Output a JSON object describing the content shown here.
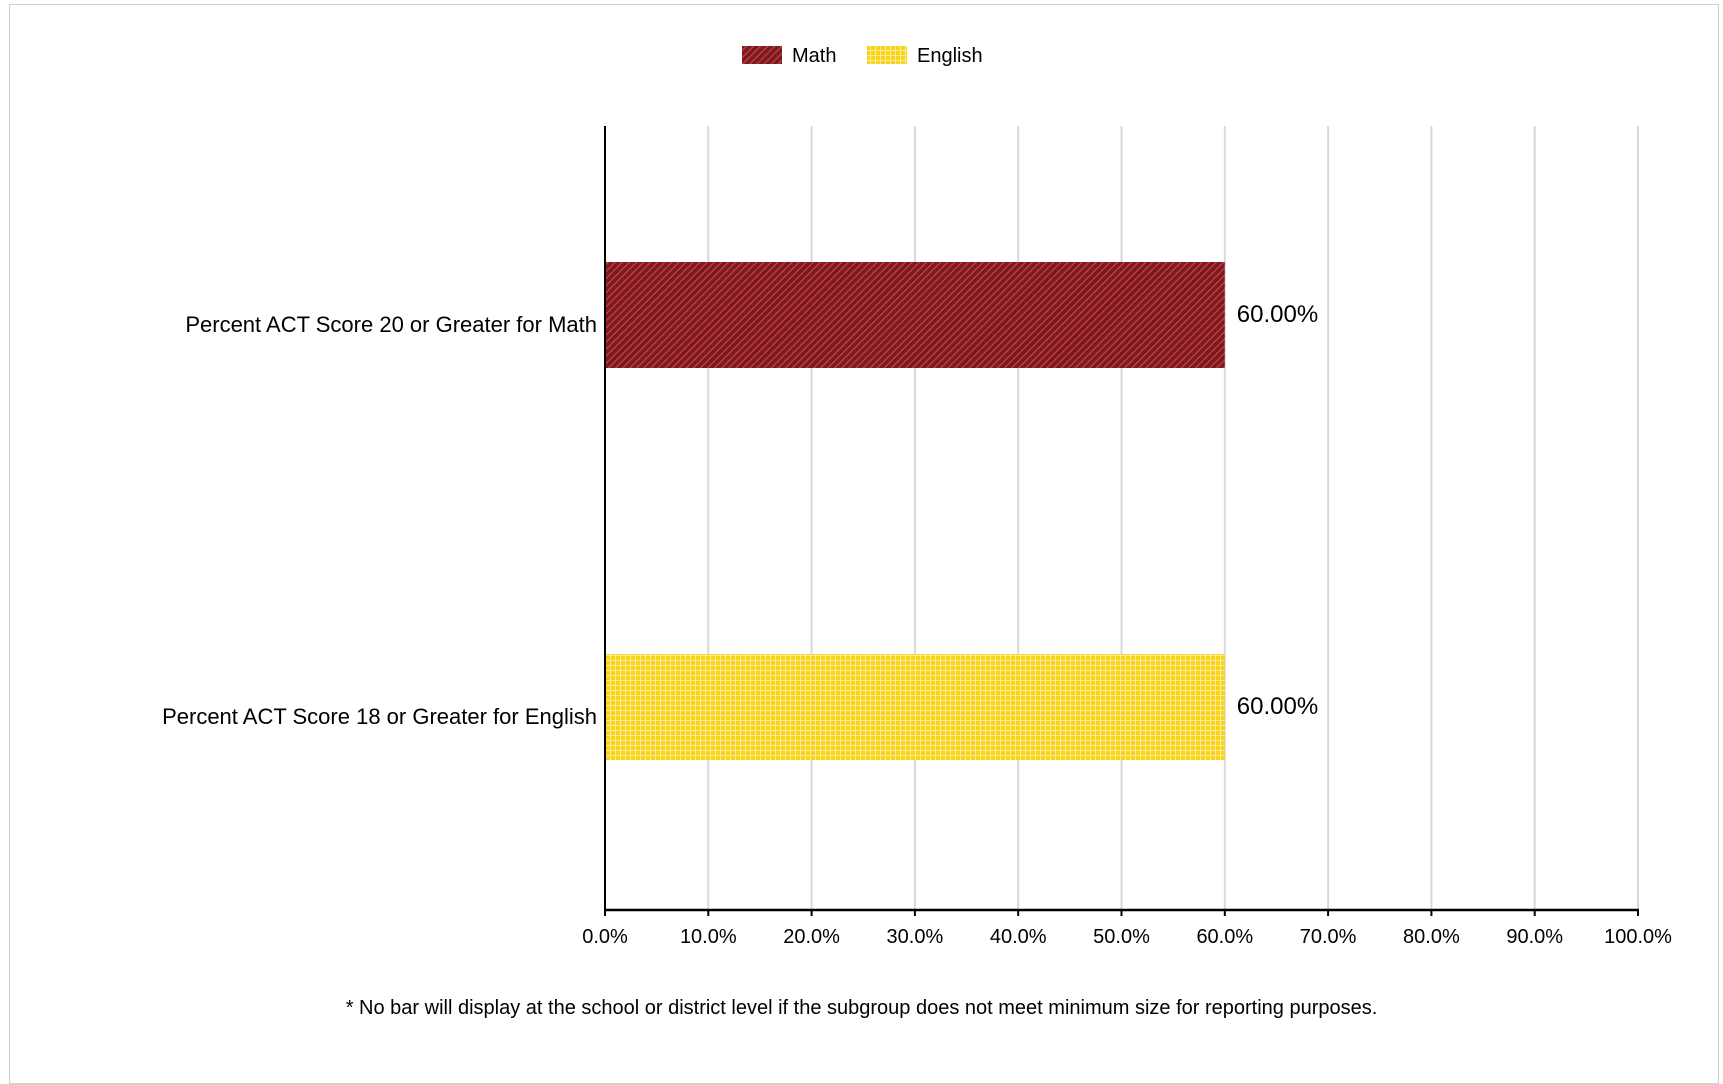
{
  "chart_data": {
    "type": "bar",
    "orientation": "horizontal",
    "categories": [
      "Percent ACT Score 20 or Greater for Math",
      "Percent ACT Score 18 or Greater for English"
    ],
    "series": [
      {
        "name": "Math",
        "color": "#a8262b",
        "pattern": "diagonal-hatch",
        "category_index": 0,
        "value": 60.0,
        "label": "60.00%"
      },
      {
        "name": "English",
        "color": "#f5d21a",
        "pattern": "grid",
        "category_index": 1,
        "value": 60.0,
        "label": "60.00%"
      }
    ],
    "xlim": [
      0,
      100
    ],
    "ticks": [
      0,
      10,
      20,
      30,
      40,
      50,
      60,
      70,
      80,
      90,
      100
    ],
    "tick_labels": [
      "0.0%",
      "10.0%",
      "20.0%",
      "30.0%",
      "40.0%",
      "50.0%",
      "60.0%",
      "70.0%",
      "80.0%",
      "90.0%",
      "100.0%"
    ],
    "grid": true,
    "legend_position": "top-center",
    "xlabel": "",
    "ylabel": ""
  },
  "footnote": "* No bar will display at the school or district level if the subgroup does not meet minimum size for reporting purposes."
}
